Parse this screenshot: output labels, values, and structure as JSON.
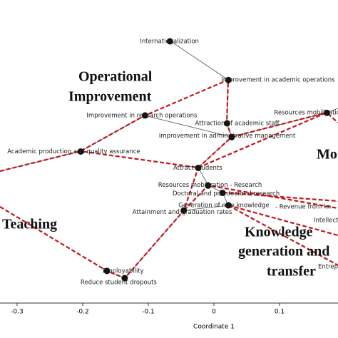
{
  "chart_data": {
    "type": "scatter",
    "xlabel": "Coordinate 1",
    "xlim": [
      -0.326,
      0.189
    ],
    "ylim": [
      -0.19,
      0.272
    ],
    "xticks": [
      -0.3,
      -0.2,
      -0.1,
      0,
      0.1
    ],
    "color": "#111111",
    "points": [
      {
        "label": "Internationalization",
        "x": -0.067,
        "y": 0.209
      },
      {
        "label": "Improvement in academic operations",
        "x": 0.022,
        "y": 0.15
      },
      {
        "label": "Improvement in research operations",
        "x": -0.105,
        "y": 0.096
      },
      {
        "label": "Attraction of academic staff",
        "x": 0.02,
        "y": 0.084
      },
      {
        "label": "Resources mobilization",
        "x": 0.172,
        "y": 0.1
      },
      {
        "label": "Improvement in administrative management",
        "x": 0.027,
        "y": 0.063
      },
      {
        "label": "Academic production and quality assurance",
        "x": -0.203,
        "y": 0.041
      },
      {
        "label": "Attract students",
        "x": -0.024,
        "y": 0.016
      },
      {
        "label": "Resources mobilization - Research",
        "x": -0.009,
        "y": -0.011
      },
      {
        "label": "Doctoral and postdoctoral research",
        "x": 0.013,
        "y": -0.022
      },
      {
        "label": "Generation of new knowledge",
        "x": 0.022,
        "y": -0.041
      },
      {
        "label": "Attainment and graduation rates",
        "x": -0.046,
        "y": -0.049
      },
      {
        "label": "Employability",
        "x": -0.163,
        "y": -0.141
      },
      {
        "label": "Reduce student dropouts",
        "x": -0.136,
        "y": -0.152
      }
    ],
    "annotations": [
      "Operational",
      "Improvement",
      "Teaching",
      "Knowledge",
      "generation and",
      "transfer",
      "Mo",
      "- Revenue from kn",
      "Intellect",
      "Entrepren"
    ]
  }
}
